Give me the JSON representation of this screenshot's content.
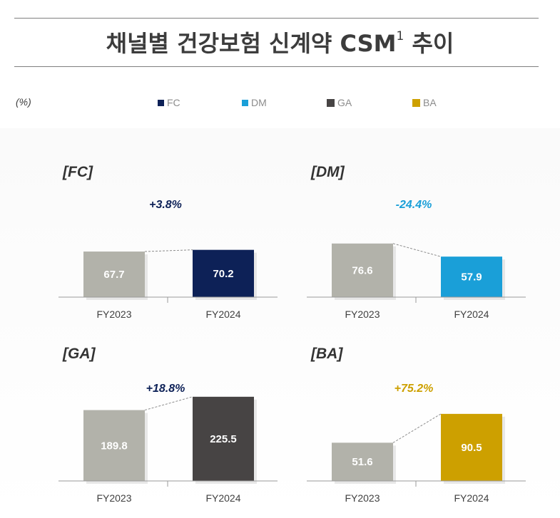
{
  "title": "채널별 건강보험 신계약 CSM",
  "title_sup": "1",
  "title_suffix": " 추이",
  "unit_label": "(%)",
  "legend": [
    {
      "label": "FC",
      "color": "#0d2157"
    },
    {
      "label": "DM",
      "color": "#1a9fd8"
    },
    {
      "label": "GA",
      "color": "#474444"
    },
    {
      "label": "BA",
      "color": "#cda000"
    }
  ],
  "chart_data": [
    {
      "type": "bar",
      "title": "[FC]",
      "categories": [
        "FY2023",
        "FY2024"
      ],
      "values": [
        67.7,
        70.2
      ],
      "change_label": "+3.8%",
      "colors": [
        "#b2b2aa",
        "#0d2157"
      ],
      "change_color": "#0d2157"
    },
    {
      "type": "bar",
      "title": "[DM]",
      "categories": [
        "FY2023",
        "FY2024"
      ],
      "values": [
        76.6,
        57.9
      ],
      "change_label": "-24.4%",
      "colors": [
        "#b2b2aa",
        "#1a9fd8"
      ],
      "change_color": "#1a9fd8"
    },
    {
      "type": "bar",
      "title": "[GA]",
      "categories": [
        "FY2023",
        "FY2024"
      ],
      "values": [
        189.8,
        225.5
      ],
      "change_label": "+18.8%",
      "colors": [
        "#b2b2aa",
        "#474444"
      ],
      "change_color": "#0d2157"
    },
    {
      "type": "bar",
      "title": "[BA]",
      "categories": [
        "FY2023",
        "FY2024"
      ],
      "values": [
        51.6,
        90.5
      ],
      "change_label": "+75.2%",
      "colors": [
        "#b2b2aa",
        "#cda000"
      ],
      "change_color": "#cda000"
    }
  ]
}
